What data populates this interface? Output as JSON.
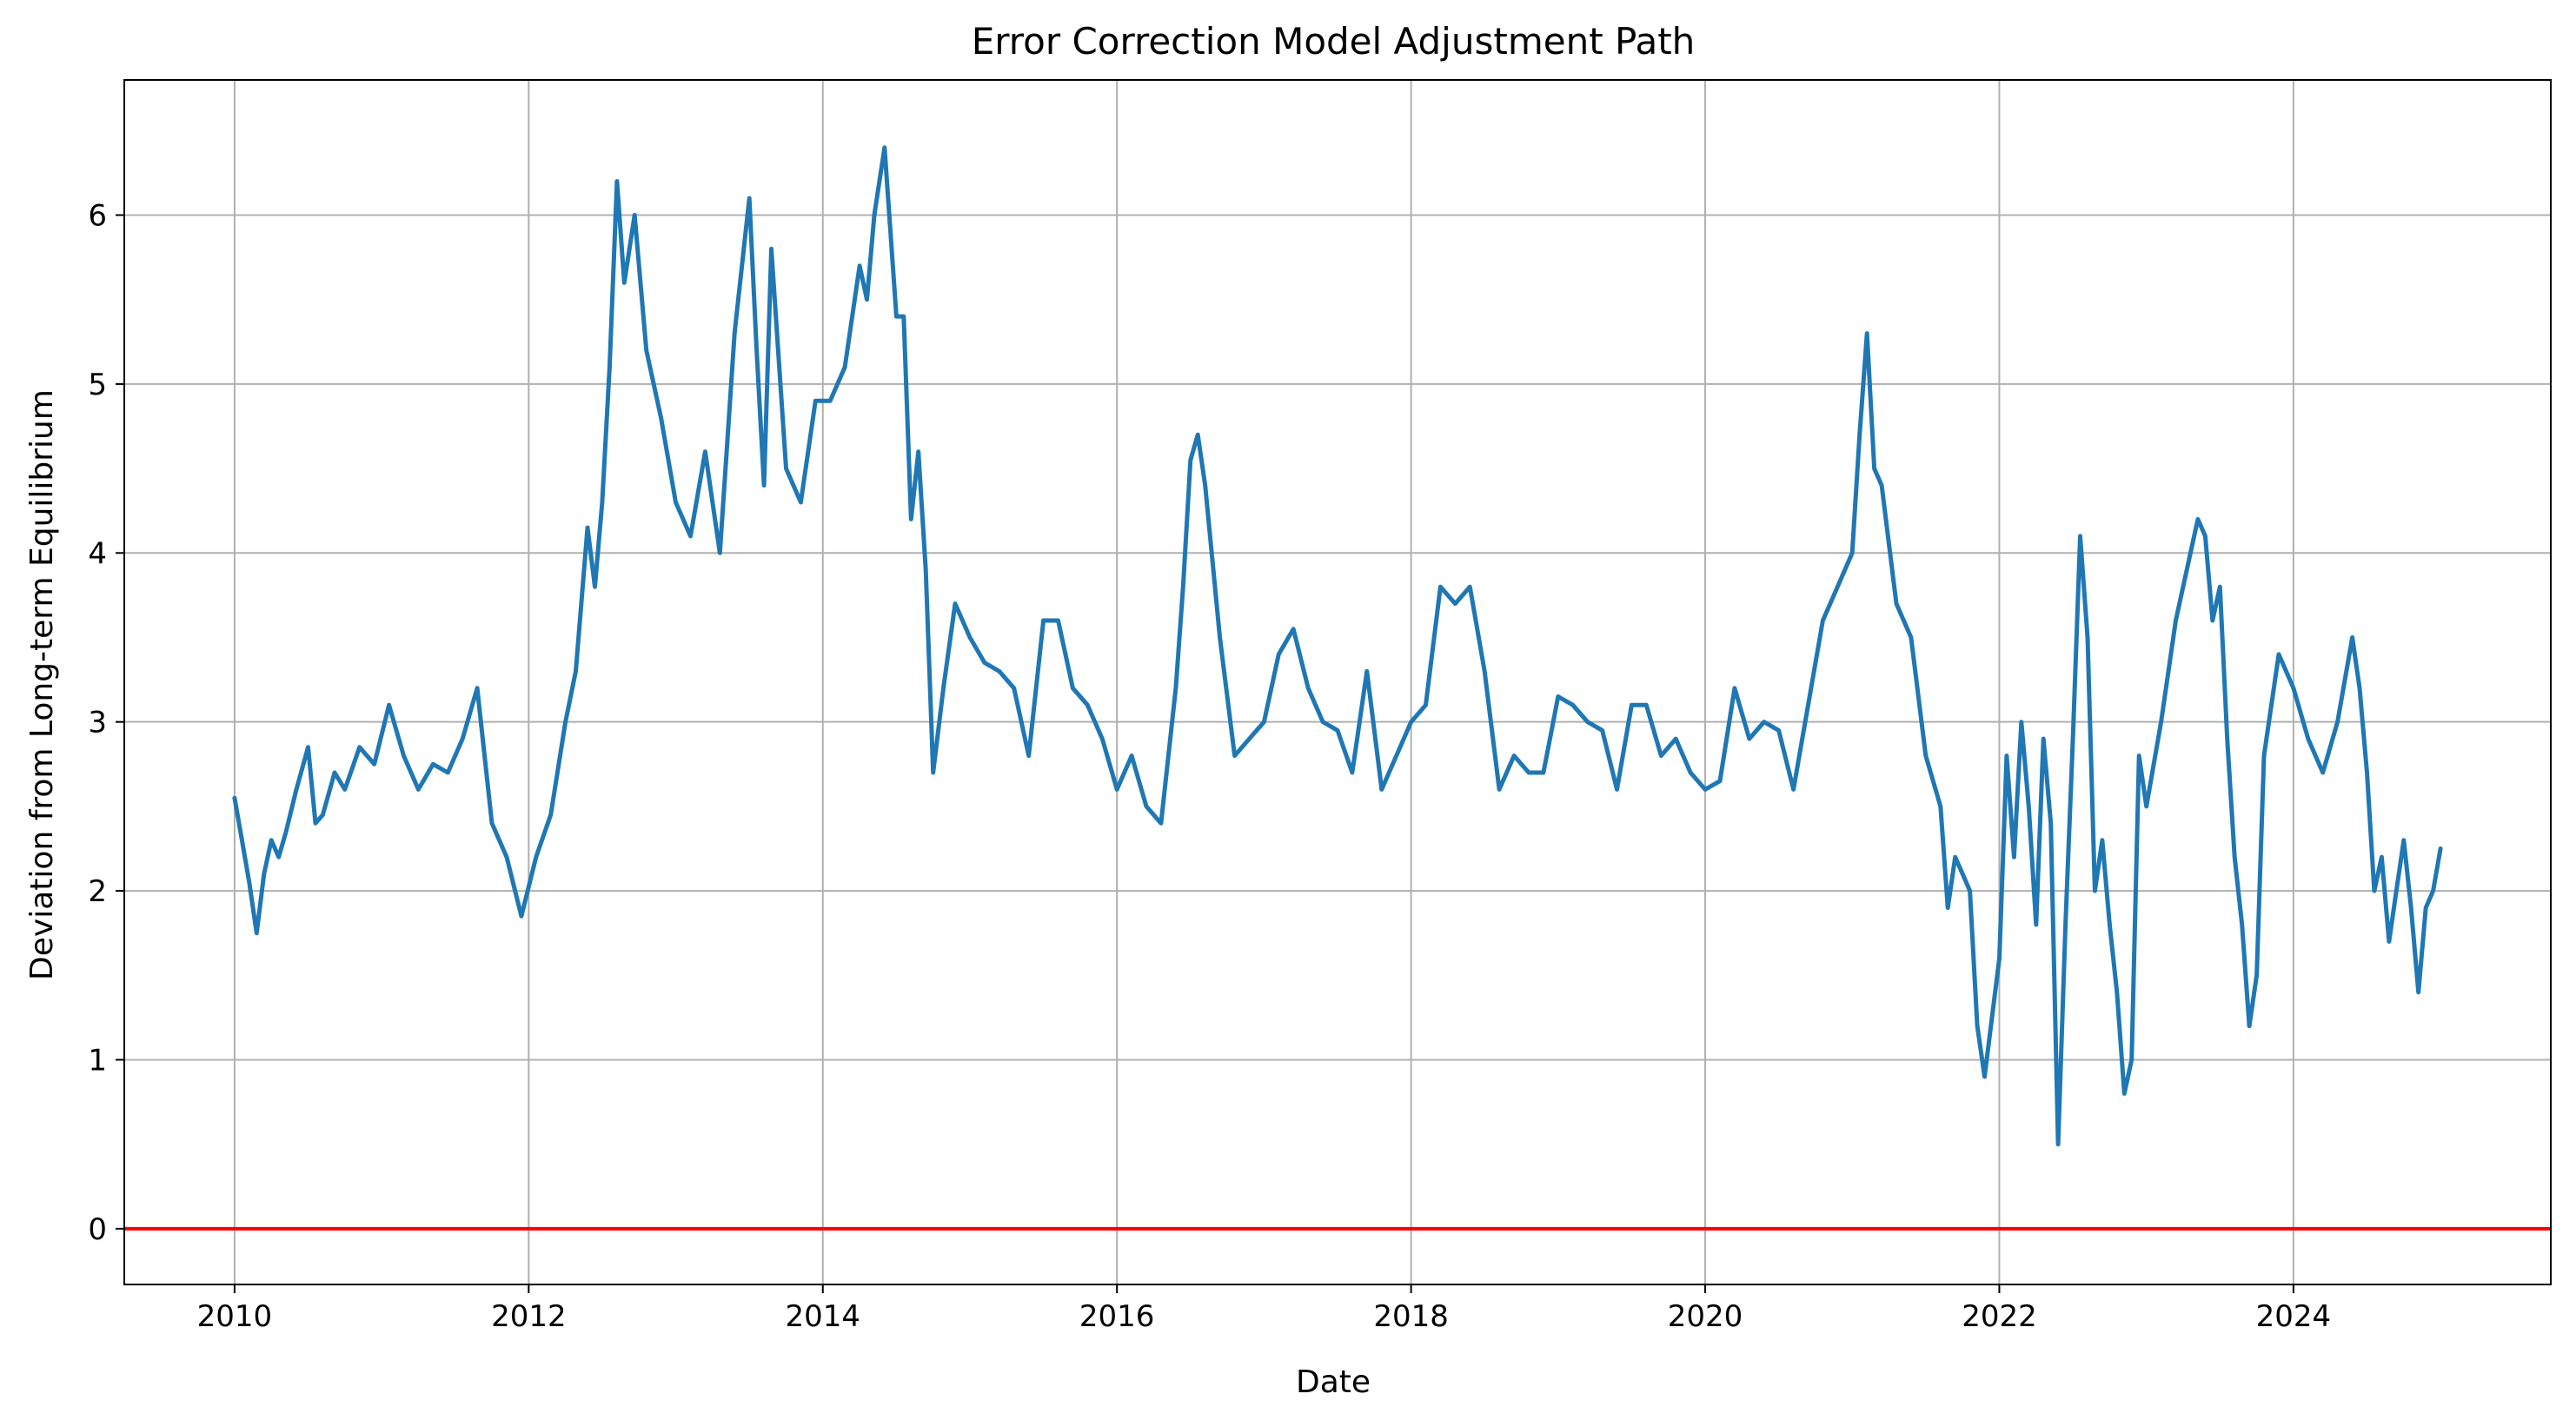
{
  "chart_data": {
    "type": "line",
    "title": "Error Correction Model Adjustment Path",
    "xlabel": "Date",
    "ylabel": "Deviation from Long-term Equilibrium",
    "x_ticks": [
      "2010",
      "2012",
      "2014",
      "2016",
      "2018",
      "2020",
      "2022",
      "2024"
    ],
    "y_ticks": [
      "0",
      "1",
      "2",
      "3",
      "4",
      "5",
      "6"
    ],
    "xlim": [
      2009.25,
      2025.75
    ],
    "ylim": [
      -0.33,
      6.8
    ],
    "grid": true,
    "series": [
      {
        "color": "#1f77b4",
        "x": [
          2010.0,
          2010.05,
          2010.1,
          2010.15,
          2010.2,
          2010.25,
          2010.3,
          2010.35,
          2010.42,
          2010.5,
          2010.55,
          2010.6,
          2010.68,
          2010.75,
          2010.85,
          2010.95,
          2011.05,
          2011.15,
          2011.25,
          2011.35,
          2011.45,
          2011.55,
          2011.65,
          2011.75,
          2011.85,
          2011.95,
          2012.05,
          2012.15,
          2012.25,
          2012.32,
          2012.4,
          2012.45,
          2012.5,
          2012.55,
          2012.6,
          2012.65,
          2012.72,
          2012.8,
          2012.9,
          2013.0,
          2013.1,
          2013.2,
          2013.3,
          2013.4,
          2013.5,
          2013.55,
          2013.6,
          2013.65,
          2013.75,
          2013.85,
          2013.95,
          2014.05,
          2014.15,
          2014.25,
          2014.3,
          2014.35,
          2014.42,
          2014.5,
          2014.55,
          2014.6,
          2014.65,
          2014.7,
          2014.75,
          2014.82,
          2014.9,
          2015.0,
          2015.1,
          2015.2,
          2015.3,
          2015.4,
          2015.5,
          2015.6,
          2015.7,
          2015.8,
          2015.9,
          2016.0,
          2016.1,
          2016.2,
          2016.3,
          2016.4,
          2016.45,
          2016.5,
          2016.55,
          2016.6,
          2016.7,
          2016.8,
          2016.9,
          2017.0,
          2017.1,
          2017.2,
          2017.3,
          2017.4,
          2017.5,
          2017.6,
          2017.7,
          2017.8,
          2017.9,
          2018.0,
          2018.1,
          2018.2,
          2018.3,
          2018.4,
          2018.5,
          2018.6,
          2018.7,
          2018.8,
          2018.9,
          2019.0,
          2019.1,
          2019.2,
          2019.3,
          2019.4,
          2019.5,
          2019.6,
          2019.7,
          2019.8,
          2019.9,
          2020.0,
          2020.1,
          2020.2,
          2020.3,
          2020.4,
          2020.5,
          2020.6,
          2020.7,
          2020.8,
          2020.9,
          2021.0,
          2021.05,
          2021.1,
          2021.15,
          2021.2,
          2021.3,
          2021.4,
          2021.5,
          2021.6,
          2021.65,
          2021.7,
          2021.75,
          2021.8,
          2021.85,
          2021.9,
          2022.0,
          2022.05,
          2022.1,
          2022.15,
          2022.2,
          2022.25,
          2022.3,
          2022.35,
          2022.4,
          2022.45,
          2022.5,
          2022.55,
          2022.6,
          2022.65,
          2022.7,
          2022.75,
          2022.8,
          2022.85,
          2022.9,
          2022.95,
          2023.0,
          2023.1,
          2023.2,
          2023.3,
          2023.35,
          2023.4,
          2023.45,
          2023.5,
          2023.55,
          2023.6,
          2023.65,
          2023.7,
          2023.75,
          2023.8,
          2023.9,
          2024.0,
          2024.1,
          2024.2,
          2024.3,
          2024.4,
          2024.45,
          2024.5,
          2024.55,
          2024.6,
          2024.65,
          2024.7,
          2024.75,
          2024.8,
          2024.85,
          2024.9,
          2024.95,
          2025.0
        ],
        "values": [
          2.55,
          2.3,
          2.05,
          1.75,
          2.1,
          2.3,
          2.2,
          2.35,
          2.6,
          2.85,
          2.4,
          2.45,
          2.7,
          2.6,
          2.85,
          2.75,
          3.1,
          2.8,
          2.6,
          2.75,
          2.7,
          2.9,
          3.2,
          2.4,
          2.2,
          1.85,
          2.2,
          2.45,
          3.0,
          3.3,
          4.15,
          3.8,
          4.3,
          5.1,
          6.2,
          5.6,
          6.0,
          5.2,
          4.8,
          4.3,
          4.1,
          4.6,
          4.0,
          5.3,
          6.1,
          5.2,
          4.4,
          5.8,
          4.5,
          4.3,
          4.9,
          4.9,
          5.1,
          5.7,
          5.5,
          6.0,
          6.4,
          5.4,
          5.4,
          4.2,
          4.6,
          3.9,
          2.7,
          3.2,
          3.7,
          3.5,
          3.35,
          3.3,
          3.2,
          2.8,
          3.6,
          3.6,
          3.2,
          3.1,
          2.9,
          2.6,
          2.8,
          2.5,
          2.4,
          3.2,
          3.8,
          4.55,
          4.7,
          4.4,
          3.5,
          2.8,
          2.9,
          3.0,
          3.4,
          3.55,
          3.2,
          3.0,
          2.95,
          2.7,
          3.3,
          2.6,
          2.8,
          3.0,
          3.1,
          3.8,
          3.7,
          3.8,
          3.3,
          2.6,
          2.8,
          2.7,
          2.7,
          3.15,
          3.1,
          3.0,
          2.95,
          2.6,
          3.1,
          3.1,
          2.8,
          2.9,
          2.7,
          2.6,
          2.65,
          3.2,
          2.9,
          3.0,
          2.95,
          2.6,
          3.1,
          3.6,
          3.8,
          4.0,
          4.7,
          5.3,
          4.5,
          4.4,
          3.7,
          3.5,
          2.8,
          2.5,
          1.9,
          2.2,
          2.1,
          2.0,
          1.2,
          0.9,
          1.6,
          2.8,
          2.2,
          3.0,
          2.5,
          1.8,
          2.9,
          2.4,
          0.5,
          1.8,
          2.9,
          4.1,
          3.5,
          2.0,
          2.3,
          1.8,
          1.4,
          0.8,
          1.0,
          2.8,
          2.5,
          3.0,
          3.6,
          4.0,
          4.2,
          4.1,
          3.6,
          3.8,
          2.9,
          2.2,
          1.8,
          1.2,
          1.5,
          2.8,
          3.4,
          3.2,
          2.9,
          2.7,
          3.0,
          3.5,
          3.2,
          2.7,
          2.0,
          2.2,
          1.7,
          2.0,
          2.3,
          1.9,
          1.4,
          1.9,
          2.0,
          2.25
        ],
        "linewidth": "thick"
      }
    ],
    "reference_line": {
      "y": 0,
      "color": "#ff0000"
    }
  }
}
